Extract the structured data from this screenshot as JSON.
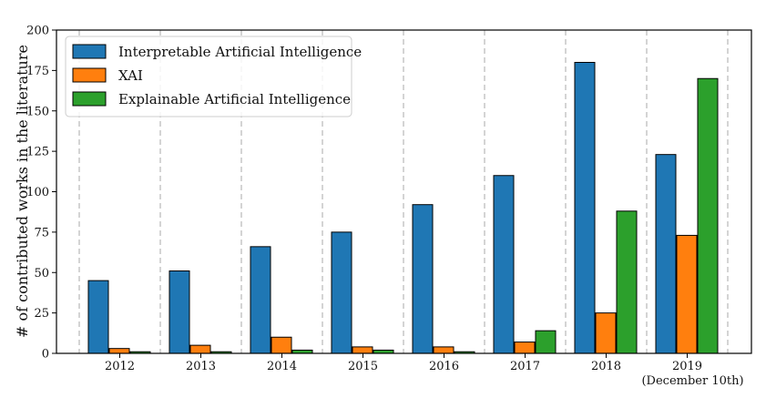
{
  "chart_data": {
    "type": "bar",
    "categories": [
      "2012",
      "2013",
      "2014",
      "2015",
      "2016",
      "2017",
      "2018",
      "2019"
    ],
    "category_sublabels": [
      "",
      "",
      "",
      "",
      "",
      "",
      "",
      "(December 10th)"
    ],
    "series": [
      {
        "name": "Interpretable Artificial Intelligence",
        "color": "#1f77b4",
        "values": [
          45,
          51,
          66,
          75,
          92,
          110,
          180,
          123
        ]
      },
      {
        "name": "XAI",
        "color": "#ff7f0e",
        "values": [
          3,
          5,
          10,
          4,
          4,
          7,
          25,
          73
        ]
      },
      {
        "name": "Explainable Artificial Intelligence",
        "color": "#2ca02c",
        "values": [
          1,
          1,
          2,
          2,
          1,
          14,
          88,
          170
        ]
      }
    ],
    "title": "",
    "xlabel": "",
    "ylabel": "# of contributed works in the literature",
    "ylim": [
      0,
      200
    ],
    "yticks": [
      0,
      25,
      50,
      75,
      100,
      125,
      150,
      175,
      200
    ],
    "grid": "vertical-dashed",
    "legend_position": "top-left"
  }
}
